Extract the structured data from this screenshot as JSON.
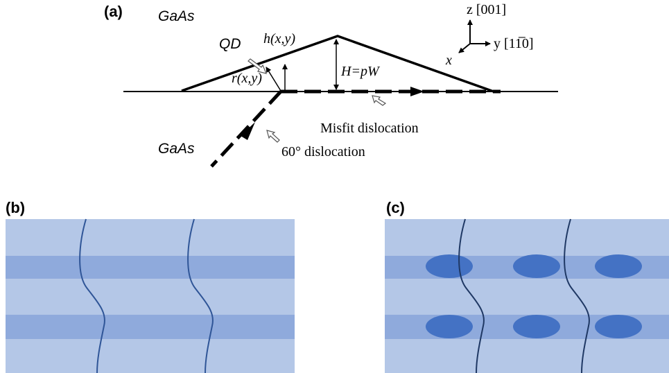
{
  "panels": {
    "a": {
      "label": "(a)",
      "texts": {
        "gaas_top": "GaAs",
        "qd": "QD",
        "h": "h(x,y)",
        "r": "r(x,y)",
        "H": "H=pW",
        "z_axis": "z [001]",
        "y_axis": "y [11̅0]",
        "x_axis": "x",
        "misfit": "Misfit dislocation",
        "sixty": "60° dislocation",
        "gaas_bottom": "GaAs"
      }
    },
    "b": {
      "label": "(b)"
    },
    "c": {
      "label": "(c)"
    }
  }
}
